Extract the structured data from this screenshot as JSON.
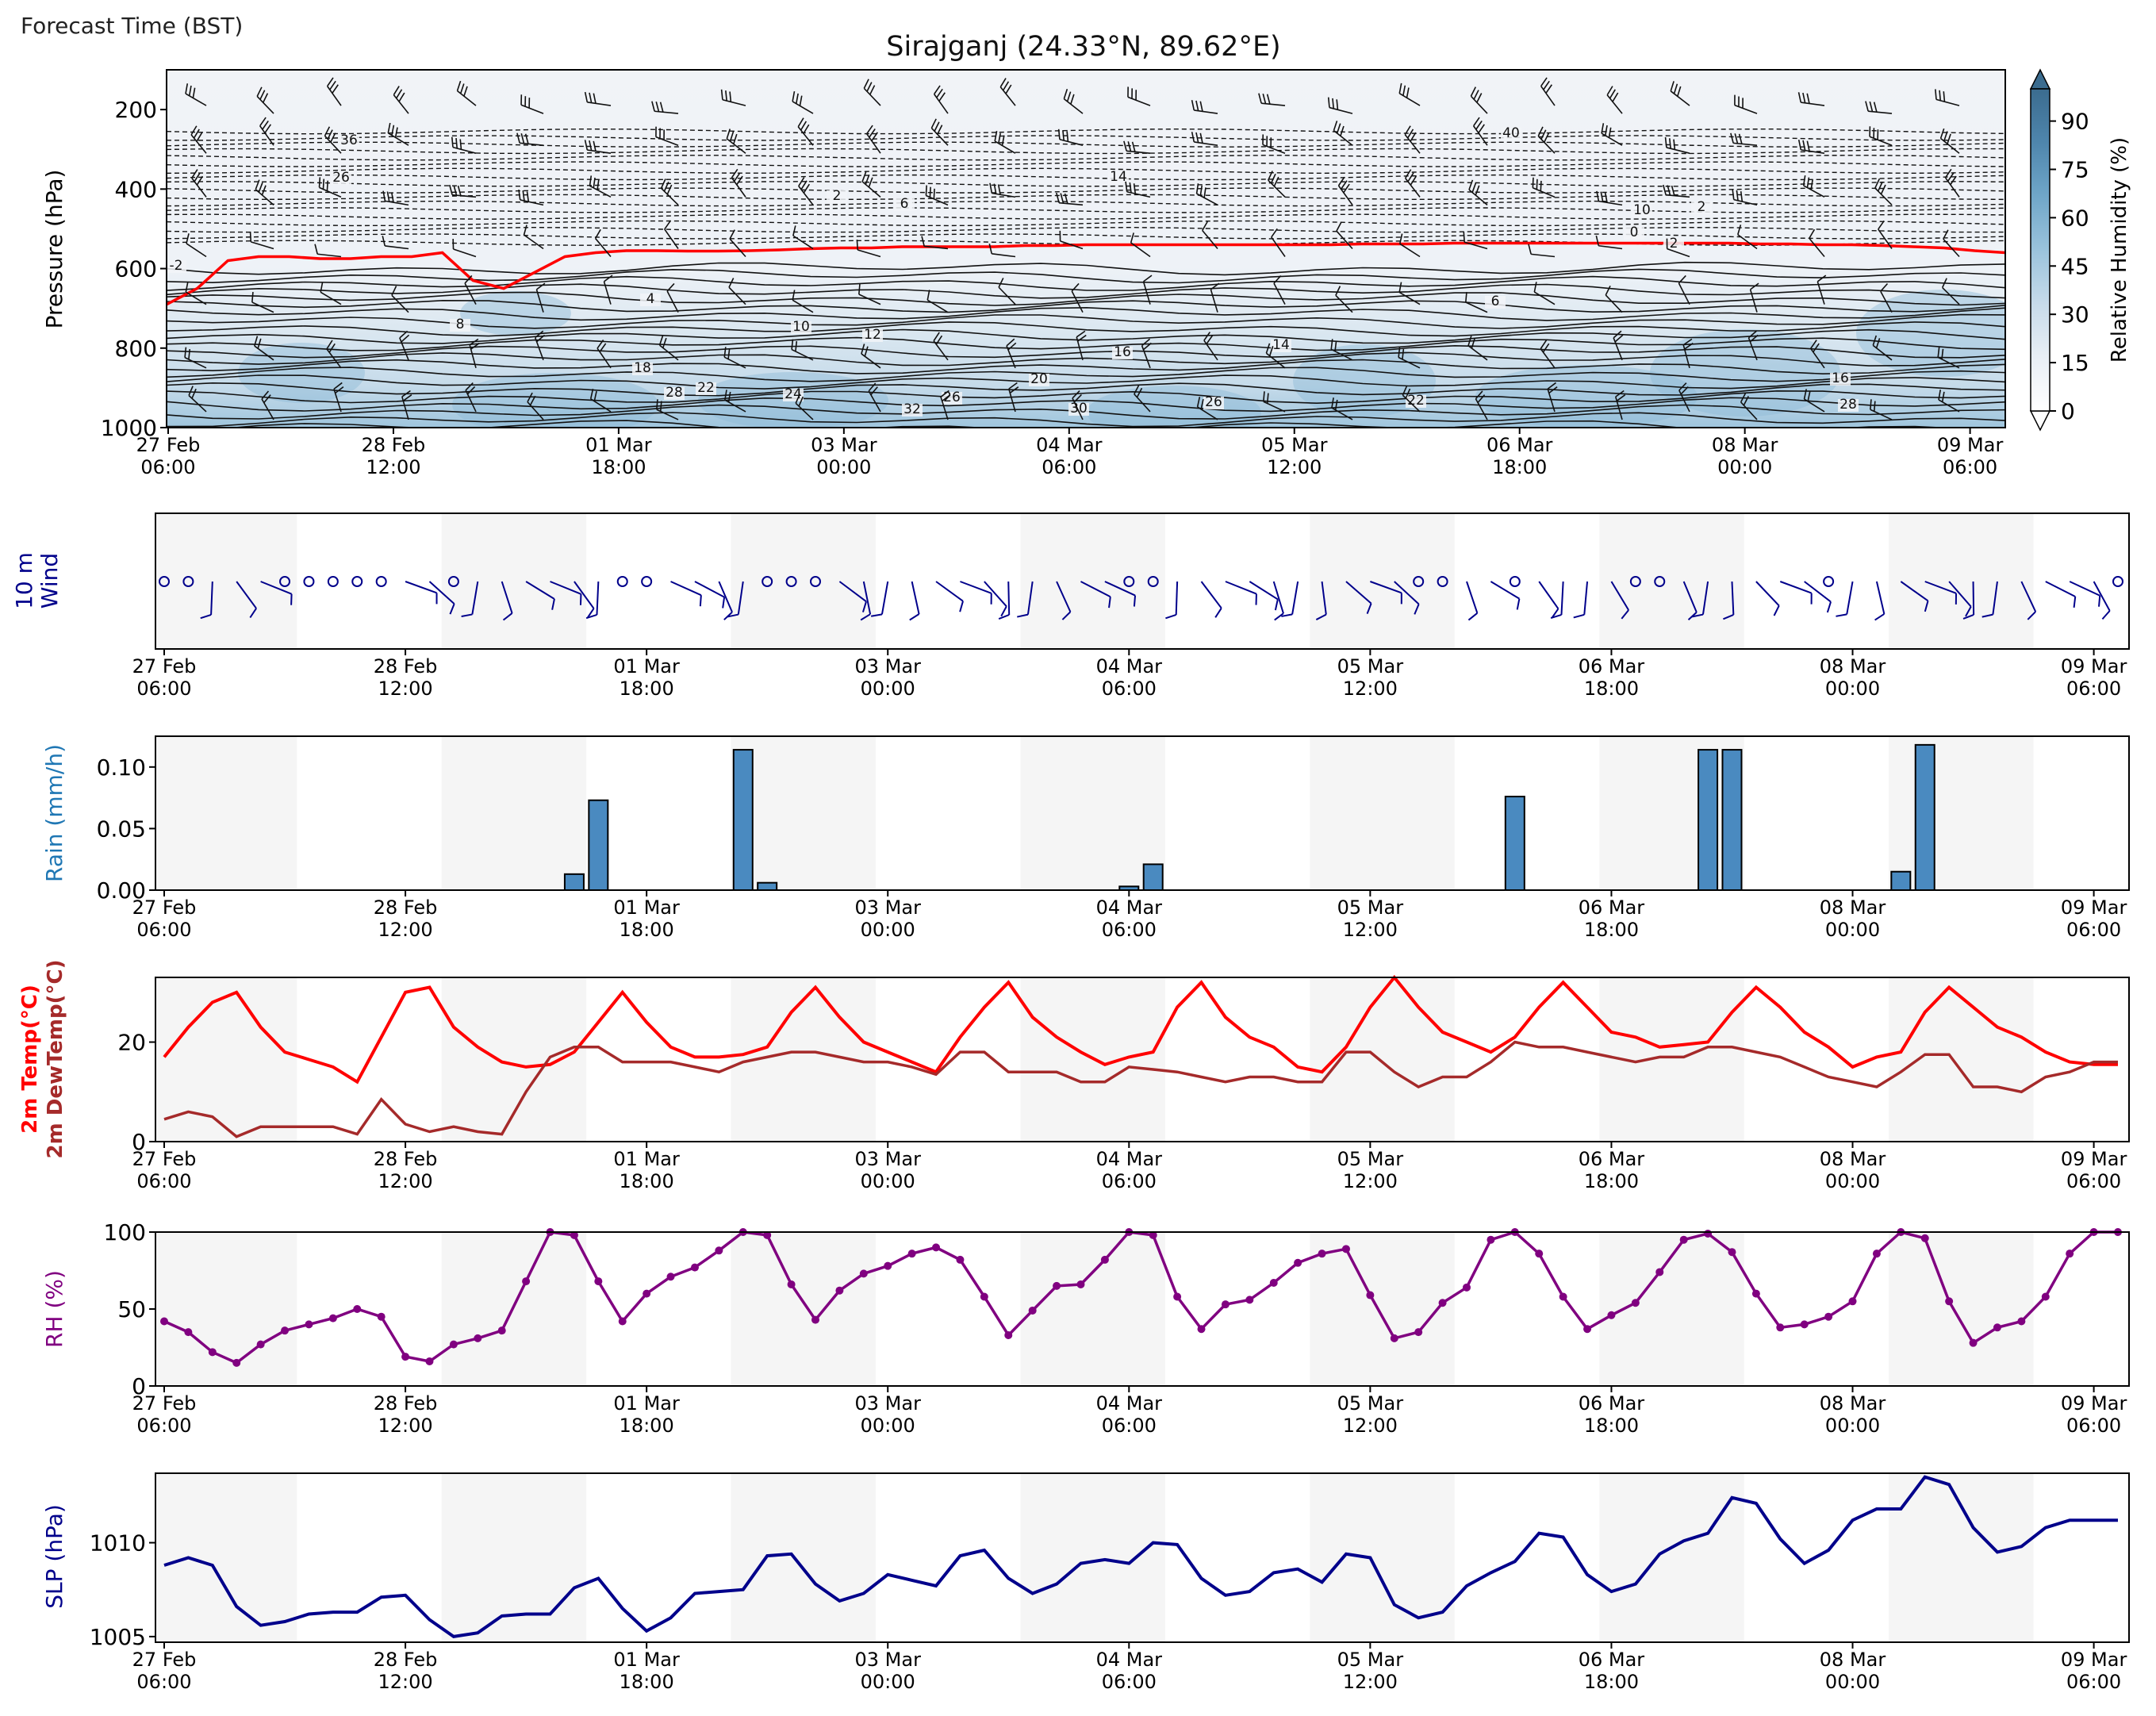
{
  "header": {
    "corner_label": "Forecast Time (BST)",
    "title": "Sirajganj (24.33°N, 89.62°E)"
  },
  "shared_x": {
    "tick_top": [
      "27 Feb",
      "28 Feb",
      "01 Mar",
      "03 Mar",
      "04 Mar",
      "05 Mar",
      "06 Mar",
      "08 Mar",
      "09 Mar"
    ],
    "tick_bottom": [
      "06:00",
      "12:00",
      "18:00",
      "00:00",
      "06:00",
      "12:00",
      "18:00",
      "00:00",
      "06:00"
    ],
    "shaded_night_bands": [
      [
        0,
        6
      ],
      [
        12,
        18
      ],
      [
        24,
        30
      ],
      [
        36,
        42
      ],
      [
        48,
        54
      ],
      [
        60,
        66
      ],
      [
        72,
        78
      ]
    ]
  },
  "colorbar": {
    "label": "Relative Humidity (%)",
    "ticks": [
      "0",
      "15",
      "30",
      "45",
      "60",
      "75",
      "90"
    ],
    "range": [
      0,
      100
    ],
    "colors": [
      "#ffffff",
      "#e8eef5",
      "#c7dbea",
      "#9ac3dc",
      "#6fa6c8",
      "#4f86ad",
      "#3b6c8f"
    ]
  },
  "panel_labels": {
    "pressure": "Pressure (hPa)",
    "wind_line1": "10 m",
    "wind_line2": "Wind",
    "rain": "Rain (mm/h)",
    "temp_line1": "2m Temp(°C)",
    "temp_line2": "2m DewTemp(°C)",
    "rh": "RH (%)",
    "slp": "SLP (hPa)"
  },
  "y_ticks": {
    "pressure": [
      "200",
      "400",
      "600",
      "800",
      "1000"
    ],
    "rain": [
      "0.00",
      "0.05",
      "0.10"
    ],
    "temp": [
      "0",
      "20"
    ],
    "rh": [
      "0",
      "50",
      "100"
    ],
    "slp": [
      "1005",
      "1010"
    ]
  },
  "contour_labels": [
    "-2",
    "0",
    "2",
    "4",
    "6",
    "8",
    "10",
    "12",
    "14",
    "16",
    "18",
    "20",
    "22",
    "24",
    "26",
    "28",
    "30",
    "32",
    "36",
    "40"
  ],
  "chart_data": [
    {
      "type": "heatmap",
      "title": "Sirajganj (24.33°N, 89.62°E)",
      "ylabel": "Pressure (hPa)",
      "ylim": [
        1000,
        100
      ],
      "colorbar_label": "Relative Humidity (%)",
      "note_freezing_level_hpa": [
        690,
        650,
        580,
        570,
        570,
        575,
        575,
        570,
        570,
        560,
        630,
        650,
        610,
        570,
        560,
        555,
        555,
        556,
        556,
        555,
        553,
        550,
        548,
        548,
        545,
        545,
        545,
        545,
        542,
        542,
        540,
        540,
        540,
        540,
        540,
        540,
        540,
        540,
        540,
        538,
        538,
        538,
        536,
        536,
        536,
        536,
        536,
        536,
        536,
        536,
        536,
        536,
        538,
        538,
        540,
        540,
        542,
        545,
        548,
        555,
        560
      ]
    },
    {
      "type": "scatter",
      "title": "",
      "ylabel": "10 m Wind",
      "series": [
        {
          "name": "",
          "x": [
            0,
            1,
            2,
            3,
            4,
            5,
            6,
            7,
            8,
            9,
            10,
            11,
            12,
            13,
            14,
            15,
            16,
            17,
            18,
            19,
            20,
            21,
            22,
            23,
            24,
            25,
            26,
            27,
            28,
            29,
            30,
            31,
            32,
            33,
            34,
            35,
            36,
            37,
            38,
            39,
            40,
            41,
            42,
            43,
            44,
            45,
            46,
            47,
            48,
            49,
            50,
            51,
            52,
            53,
            54,
            55,
            56,
            57,
            58,
            59,
            60,
            61,
            62,
            63,
            64,
            65,
            66,
            67,
            68,
            69,
            70,
            71,
            72,
            73,
            74,
            75,
            76,
            77,
            78,
            79,
            80,
            81
          ]
        }
      ]
    },
    {
      "type": "bar",
      "title": "",
      "ylabel": "Rain (mm/h)",
      "ylim": [
        0,
        0.125
      ],
      "x": [
        17,
        18,
        24,
        25,
        40,
        41,
        56,
        64,
        65,
        72,
        73
      ],
      "values": [
        0.013,
        0.073,
        0.114,
        0.006,
        0.003,
        0.021,
        0.076,
        0.114,
        0.114,
        0.015,
        0.118
      ]
    },
    {
      "type": "line",
      "title": "",
      "ylabel": "2m Temp(°C) / 2m DewTemp(°C)",
      "ylim": [
        0,
        33
      ],
      "x": [
        0,
        1,
        2,
        3,
        4,
        5,
        6,
        7,
        8,
        9,
        10,
        11,
        12,
        13,
        14,
        15,
        16,
        17,
        18,
        19,
        20,
        21,
        22,
        23,
        24,
        25,
        26,
        27,
        28,
        29,
        30,
        31,
        32,
        33,
        34,
        35,
        36,
        37,
        38,
        39,
        40,
        41,
        42,
        43,
        44,
        45,
        46,
        47,
        48,
        49,
        50,
        51,
        52,
        53,
        54,
        55,
        56,
        57,
        58,
        59,
        60,
        61,
        62,
        63,
        64,
        65,
        66,
        67,
        68,
        69,
        70,
        71,
        72,
        73,
        74,
        75,
        76,
        77,
        78,
        79,
        80,
        81
      ],
      "series": [
        {
          "name": "2m Temp(°C)",
          "color": "#ff0000",
          "values": [
            17,
            23,
            28,
            30,
            23,
            18,
            16.5,
            15,
            12,
            21,
            30,
            31,
            23,
            19,
            16,
            15,
            15.5,
            18,
            24,
            30,
            24,
            19,
            17,
            17,
            17.5,
            19,
            26,
            31,
            25,
            20,
            18,
            16,
            14,
            21,
            27,
            32,
            25,
            21,
            18,
            15.5,
            17,
            18,
            27,
            32,
            25,
            21,
            19,
            15,
            14,
            19,
            27,
            33,
            27,
            22,
            20,
            18,
            21,
            27,
            32,
            27,
            22,
            21,
            19,
            19.5,
            20,
            26,
            31,
            27,
            22,
            19,
            15,
            17,
            18,
            26,
            31,
            27,
            23,
            21,
            18,
            16,
            15.5,
            15.5
          ]
        },
        {
          "name": "2m DewTemp(°C)",
          "color": "#a52a2a",
          "values": [
            4.5,
            6,
            5,
            1,
            3,
            3,
            3,
            3,
            1.5,
            8.5,
            3.5,
            2,
            3,
            2,
            1.5,
            10,
            17,
            19,
            19,
            16,
            16,
            16,
            15,
            14,
            16,
            17,
            18,
            18,
            17,
            16,
            16,
            15,
            13.5,
            18,
            18,
            14,
            14,
            14,
            12,
            12,
            15,
            14.5,
            14,
            13,
            12,
            13,
            13,
            12,
            12,
            18,
            18,
            14,
            11,
            13,
            13,
            16,
            20,
            19,
            19,
            18,
            17,
            16,
            17,
            17,
            19,
            19,
            18,
            17,
            15,
            13,
            12,
            11,
            14,
            17.5,
            17.5,
            11,
            11,
            10,
            13,
            14,
            16,
            16
          ]
        }
      ]
    },
    {
      "type": "line",
      "title": "",
      "ylabel": "RH (%)",
      "ylim": [
        0,
        100
      ],
      "x": [
        0,
        1,
        2,
        3,
        4,
        5,
        6,
        7,
        8,
        9,
        10,
        11,
        12,
        13,
        14,
        15,
        16,
        17,
        18,
        19,
        20,
        21,
        22,
        23,
        24,
        25,
        26,
        27,
        28,
        29,
        30,
        31,
        32,
        33,
        34,
        35,
        36,
        37,
        38,
        39,
        40,
        41,
        42,
        43,
        44,
        45,
        46,
        47,
        48,
        49,
        50,
        51,
        52,
        53,
        54,
        55,
        56,
        57,
        58,
        59,
        60,
        61,
        62,
        63,
        64,
        65,
        66,
        67,
        68,
        69,
        70,
        71,
        72,
        73,
        74,
        75,
        76,
        77,
        78,
        79,
        80,
        81
      ],
      "series": [
        {
          "name": "RH (%)",
          "color": "#800080",
          "values": [
            42,
            35,
            22,
            15,
            27,
            36,
            40,
            44,
            50,
            45,
            19,
            16,
            27,
            31,
            36,
            68,
            100,
            98,
            68,
            42,
            60,
            71,
            77,
            88,
            100,
            98,
            66,
            43,
            62,
            73,
            78,
            86,
            90,
            82,
            58,
            33,
            49,
            65,
            66,
            82,
            100,
            98,
            58,
            37,
            53,
            56,
            67,
            80,
            86,
            89,
            59,
            31,
            35,
            54,
            64,
            95,
            100,
            86,
            58,
            37,
            46,
            54,
            74,
            95,
            99,
            87,
            60,
            38,
            40,
            45,
            55,
            86,
            100,
            96,
            55,
            28,
            38,
            42,
            58,
            86,
            100,
            100
          ]
        }
      ]
    },
    {
      "type": "line",
      "title": "",
      "ylabel": "SLP (hPa)",
      "ylim": [
        1004.7,
        1013.7
      ],
      "x": [
        0,
        1,
        2,
        3,
        4,
        5,
        6,
        7,
        8,
        9,
        10,
        11,
        12,
        13,
        14,
        15,
        16,
        17,
        18,
        19,
        20,
        21,
        22,
        23,
        24,
        25,
        26,
        27,
        28,
        29,
        30,
        31,
        32,
        33,
        34,
        35,
        36,
        37,
        38,
        39,
        40,
        41,
        42,
        43,
        44,
        45,
        46,
        47,
        48,
        49,
        50,
        51,
        52,
        53,
        54,
        55,
        56,
        57,
        58,
        59,
        60,
        61,
        62,
        63,
        64,
        65,
        66,
        67,
        68,
        69,
        70,
        71,
        72,
        73,
        74,
        75,
        76,
        77,
        78,
        79,
        80,
        81
      ],
      "series": [
        {
          "name": "SLP (hPa)",
          "color": "#00008b",
          "values": [
            1008.8,
            1009.2,
            1008.8,
            1006.6,
            1005.6,
            1005.8,
            1006.2,
            1006.3,
            1006.3,
            1007.1,
            1007.2,
            1005.9,
            1005.0,
            1005.2,
            1006.1,
            1006.2,
            1006.2,
            1007.6,
            1008.1,
            1006.5,
            1005.3,
            1006.0,
            1007.3,
            1007.4,
            1007.5,
            1009.3,
            1009.4,
            1007.8,
            1006.9,
            1007.3,
            1008.3,
            1008.0,
            1007.7,
            1009.3,
            1009.6,
            1008.1,
            1007.3,
            1007.8,
            1008.9,
            1009.1,
            1008.9,
            1010.0,
            1009.9,
            1008.1,
            1007.2,
            1007.4,
            1008.4,
            1008.6,
            1007.9,
            1009.4,
            1009.2,
            1006.7,
            1006.0,
            1006.3,
            1007.7,
            1008.4,
            1009.0,
            1010.5,
            1010.3,
            1008.3,
            1007.4,
            1007.8,
            1009.4,
            1010.1,
            1010.5,
            1012.4,
            1012.1,
            1010.2,
            1008.9,
            1009.6,
            1011.2,
            1011.8,
            1011.8,
            1013.5,
            1013.1,
            1010.8,
            1009.5,
            1009.8,
            1010.8,
            1011.2,
            1011.2,
            1011.2
          ]
        }
      ]
    }
  ]
}
